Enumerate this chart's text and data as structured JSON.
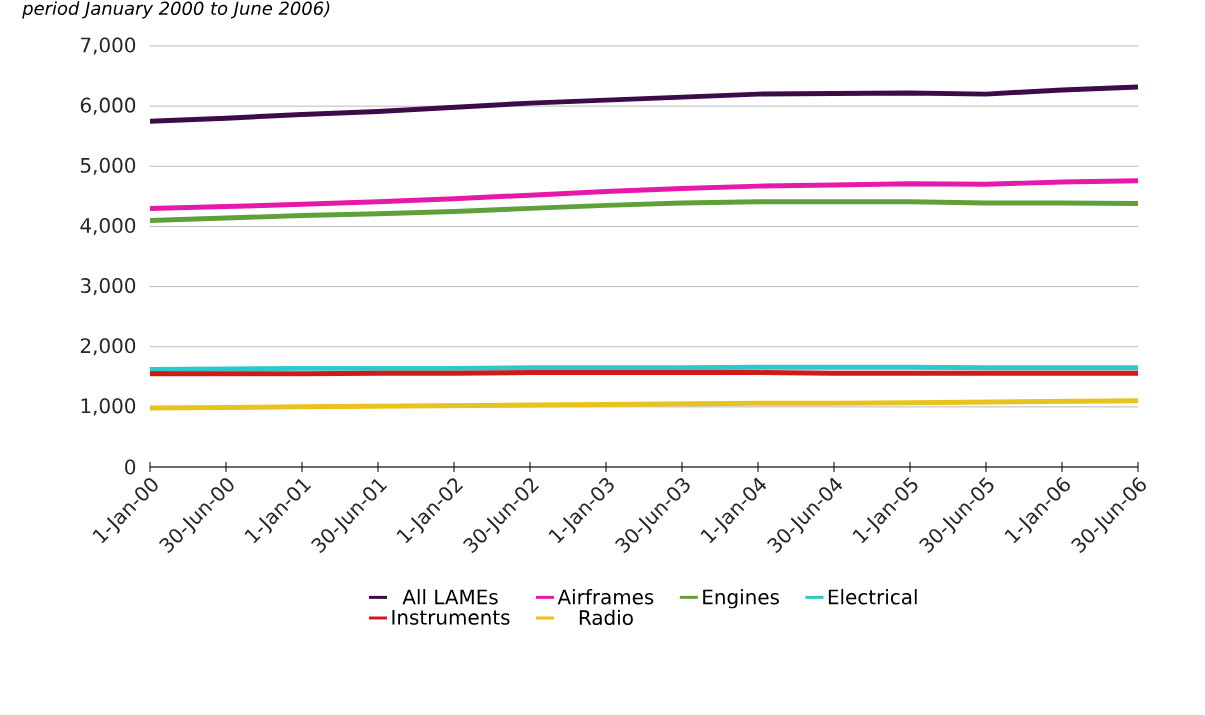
{
  "chart_data": {
    "type": "line",
    "subtitle": "period January 2000 to June 2006)",
    "categories": [
      "1-Jan-00",
      "30-Jun-00",
      "1-Jan-01",
      "30-Jun-01",
      "1-Jan-02",
      "30-Jun-02",
      "1-Jan-03",
      "30-Jun-03",
      "1-Jan-04",
      "30-Jun-04",
      "1-Jan-05",
      "30-Jun-05",
      "1-Jan-06",
      "30-Jun-06"
    ],
    "series": [
      {
        "name": "All LAMEs",
        "color": "#3d0a4a",
        "values": [
          5750,
          5800,
          5860,
          5910,
          5980,
          6050,
          6100,
          6150,
          6200,
          6210,
          6220,
          6200,
          6270,
          6320
        ]
      },
      {
        "name": "Airframes",
        "color": "#e619a8",
        "values": [
          4300,
          4330,
          4370,
          4410,
          4460,
          4520,
          4580,
          4630,
          4670,
          4690,
          4710,
          4700,
          4740,
          4760
        ]
      },
      {
        "name": "Engines",
        "color": "#5fa03a",
        "values": [
          4100,
          4140,
          4180,
          4210,
          4250,
          4300,
          4350,
          4390,
          4410,
          4410,
          4410,
          4390,
          4390,
          4380
        ]
      },
      {
        "name": "Electrical",
        "color": "#2ec8c8",
        "values": [
          1620,
          1630,
          1640,
          1640,
          1640,
          1650,
          1650,
          1650,
          1660,
          1660,
          1660,
          1650,
          1650,
          1650
        ]
      },
      {
        "name": "Instruments",
        "color": "#d01a1a",
        "values": [
          1550,
          1550,
          1550,
          1560,
          1560,
          1570,
          1570,
          1570,
          1570,
          1560,
          1560,
          1560,
          1560,
          1560
        ]
      },
      {
        "name": "Radio",
        "color": "#e8c31e",
        "values": [
          980,
          990,
          1000,
          1010,
          1020,
          1030,
          1040,
          1050,
          1060,
          1060,
          1070,
          1080,
          1090,
          1100
        ]
      }
    ],
    "ylim": [
      0,
      7000
    ],
    "yticks": [
      0,
      {
        "value": 1000,
        "label": "1,000"
      },
      {
        "value": 2000,
        "label": "2,000"
      },
      {
        "value": 3000,
        "label": "3,000"
      },
      {
        "value": 4000,
        "label": "4,000"
      },
      {
        "value": 5000,
        "label": "5,000"
      },
      {
        "value": 6000,
        "label": "6,000"
      },
      {
        "value": 7000,
        "label": "7,000"
      }
    ],
    "grid": "y",
    "legend": "bottom"
  }
}
